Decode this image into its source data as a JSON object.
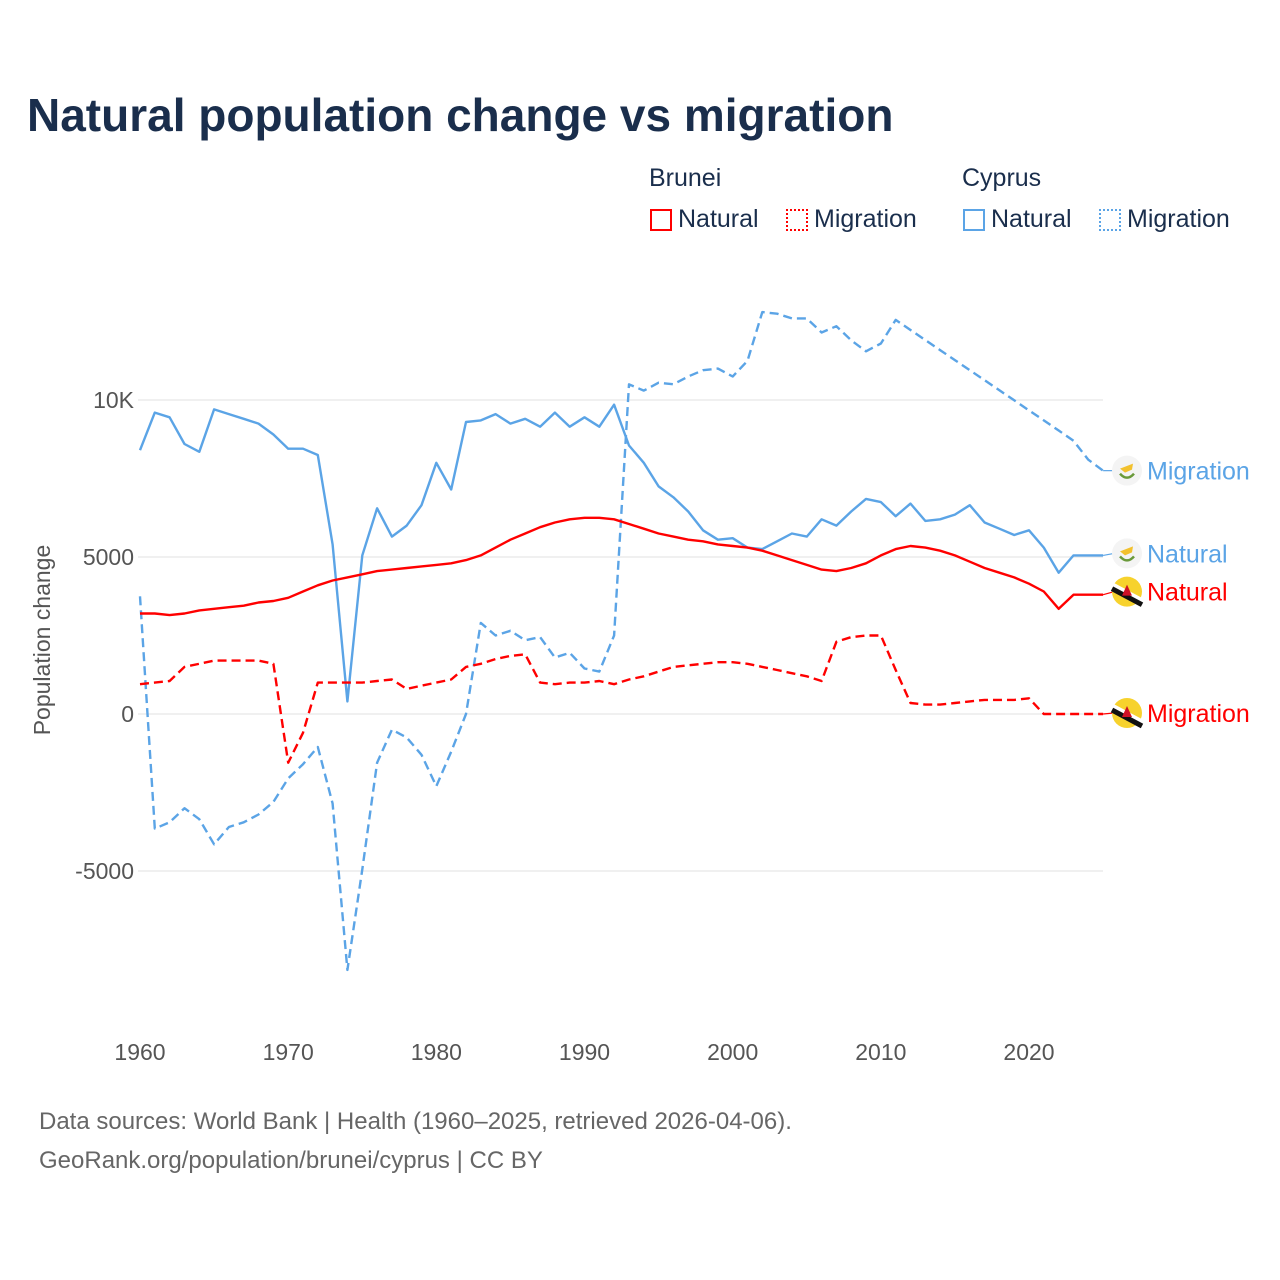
{
  "chart_data": {
    "type": "line",
    "title": "Natural population change vs migration",
    "xlabel": "",
    "ylabel": "Population change",
    "xlim": [
      1960,
      2025
    ],
    "ylim": [
      -10000,
      13000
    ],
    "x_ticks": [
      1960,
      1970,
      1980,
      1990,
      2000,
      2010,
      2020
    ],
    "x_tick_labels": [
      "1960",
      "1970",
      "1980",
      "1990",
      "2000",
      "2010",
      "2020"
    ],
    "y_ticks": [
      -5000,
      0,
      5000,
      10000
    ],
    "y_tick_labels": [
      "-5000",
      "0",
      "5000",
      "10K"
    ],
    "grid": true,
    "legend_position": "top-right",
    "legend_groups": [
      {
        "country": "Brunei",
        "entries": [
          "Natural",
          "Migration"
        ]
      },
      {
        "country": "Cyprus",
        "entries": [
          "Natural",
          "Migration"
        ]
      }
    ],
    "x": [
      1960,
      1961,
      1962,
      1963,
      1964,
      1965,
      1966,
      1967,
      1968,
      1969,
      1970,
      1971,
      1972,
      1973,
      1974,
      1975,
      1976,
      1977,
      1978,
      1979,
      1980,
      1981,
      1982,
      1983,
      1984,
      1985,
      1986,
      1987,
      1988,
      1989,
      1990,
      1991,
      1992,
      1993,
      1994,
      1995,
      1996,
      1997,
      1998,
      1999,
      2000,
      2001,
      2002,
      2003,
      2004,
      2005,
      2006,
      2007,
      2008,
      2009,
      2010,
      2011,
      2012,
      2013,
      2014,
      2015,
      2016,
      2017,
      2018,
      2019,
      2020,
      2021,
      2022,
      2023,
      2024,
      2025
    ],
    "series": [
      {
        "name": "Cyprus Natural",
        "country": "Cyprus",
        "kind": "Natural",
        "color": "#5ba4e6",
        "dash": false,
        "end_label": "Natural",
        "values": [
          8400,
          9600,
          9450,
          8600,
          8350,
          9700,
          9550,
          9400,
          9250,
          8900,
          8450,
          8450,
          8250,
          5400,
          400,
          5050,
          6550,
          5650,
          6000,
          6650,
          8000,
          7150,
          9300,
          9350,
          9550,
          9250,
          9400,
          9150,
          9600,
          9150,
          9450,
          9150,
          9850,
          8550,
          8000,
          7250,
          6900,
          6450,
          5850,
          5550,
          5600,
          5300,
          5250,
          5500,
          5750,
          5650,
          6200,
          6000,
          6450,
          6850,
          6750,
          6300,
          6700,
          6150,
          6200,
          6350,
          6650,
          6100,
          5900,
          5700,
          5850,
          5300,
          4500,
          5050,
          5050,
          5050
        ]
      },
      {
        "name": "Cyprus Migration",
        "country": "Cyprus",
        "kind": "Migration",
        "color": "#5ba4e6",
        "dash": true,
        "end_label": "Migration",
        "values": [
          3750,
          -3650,
          -3450,
          -3000,
          -3350,
          -4150,
          -3600,
          -3450,
          -3200,
          -2800,
          -2050,
          -1600,
          -1050,
          -2850,
          -8150,
          -4950,
          -1550,
          -500,
          -750,
          -1300,
          -2300,
          -1200,
          0,
          2900,
          2500,
          2650,
          2350,
          2450,
          1800,
          1950,
          1450,
          1350,
          2500,
          10500,
          10300,
          10550,
          10500,
          10750,
          10950,
          11000,
          10750,
          11250,
          12800,
          12750,
          12600,
          12600,
          12150,
          12350,
          11900,
          11550,
          11800,
          12550,
          12230,
          11910,
          11590,
          11270,
          10950,
          10630,
          10310,
          9990,
          9670,
          9350,
          9030,
          8700,
          8100,
          7750
        ]
      },
      {
        "name": "Brunei Natural",
        "country": "Brunei",
        "kind": "Natural",
        "color": "#ff0000",
        "dash": false,
        "end_label": "Natural",
        "values": [
          3200,
          3200,
          3150,
          3200,
          3300,
          3350,
          3400,
          3450,
          3550,
          3600,
          3700,
          3900,
          4100,
          4250,
          4350,
          4450,
          4550,
          4600,
          4650,
          4700,
          4750,
          4800,
          4900,
          5050,
          5300,
          5550,
          5750,
          5950,
          6100,
          6200,
          6250,
          6250,
          6200,
          6050,
          5900,
          5750,
          5650,
          5550,
          5500,
          5400,
          5350,
          5300,
          5200,
          5050,
          4900,
          4750,
          4600,
          4550,
          4650,
          4800,
          5050,
          5250,
          5350,
          5300,
          5200,
          5050,
          4850,
          4650,
          4500,
          4350,
          4150,
          3900,
          3350,
          3800,
          3800,
          3800
        ]
      },
      {
        "name": "Brunei Migration",
        "country": "Brunei",
        "kind": "Migration",
        "color": "#ff0000",
        "dash": true,
        "end_label": "Migration",
        "values": [
          950,
          1000,
          1050,
          1500,
          1600,
          1700,
          1700,
          1700,
          1700,
          1600,
          -1550,
          -600,
          1000,
          1000,
          1000,
          1000,
          1050,
          1100,
          800,
          900,
          1000,
          1100,
          1500,
          1600,
          1750,
          1850,
          1900,
          1000,
          950,
          1000,
          1000,
          1050,
          950,
          1100,
          1200,
          1350,
          1500,
          1550,
          1600,
          1650,
          1650,
          1600,
          1500,
          1400,
          1300,
          1200,
          1050,
          2300,
          2450,
          2500,
          2500,
          1400,
          350,
          300,
          300,
          350,
          400,
          450,
          450,
          450,
          500,
          0,
          0,
          0,
          0,
          0
        ]
      }
    ]
  },
  "footer": {
    "line1": "Data sources: World Bank | Health (1960–2025, retrieved 2026-04-06).",
    "line2": "GeoRank.org/population/brunei/cyprus | CC BY"
  }
}
